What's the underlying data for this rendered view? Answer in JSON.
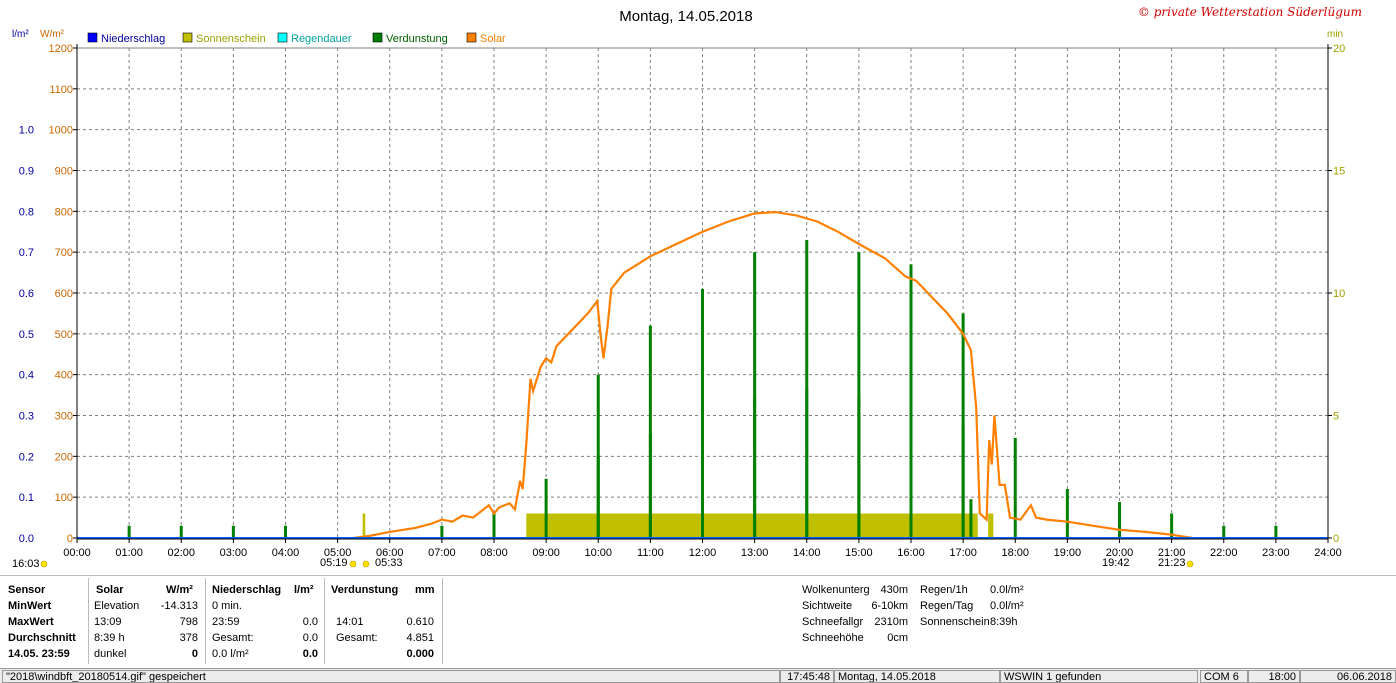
{
  "chart_data": {
    "type": "bar",
    "title": "Montag, 14.05.2018",
    "copyright": "© private Wetterstation Süderlügum",
    "left_units": [
      "l/m²",
      "W/m²"
    ],
    "right_unit": "min",
    "legend": [
      {
        "label": "Niederschlag",
        "color": "#0000ff"
      },
      {
        "label": "Sonnenschein",
        "color": "#c0c000"
      },
      {
        "label": "Regendauer",
        "color": "#00ffff"
      },
      {
        "label": "Verdunstung",
        "color": "#008000"
      },
      {
        "label": "Solar",
        "color": "#ff8000"
      }
    ],
    "left_axis_rain": {
      "ticks": [
        "0.0",
        "0.1",
        "0.2",
        "0.3",
        "0.4",
        "0.5",
        "0.6",
        "0.7",
        "0.8",
        "0.9",
        "1.0"
      ],
      "ylim": [
        0,
        1.2
      ],
      "color": "#0000a0"
    },
    "left_axis_solar": {
      "ticks": [
        "0",
        "100",
        "200",
        "300",
        "400",
        "500",
        "600",
        "700",
        "800",
        "900",
        "1000",
        "1100",
        "1200"
      ],
      "ylim": [
        0,
        1200
      ],
      "color": "#cc6600"
    },
    "right_axis": {
      "ticks": [
        "0",
        "5",
        "10",
        "15",
        "20"
      ],
      "ylim": [
        0,
        20
      ],
      "color": "#a0a000"
    },
    "x_ticks": [
      "00:00",
      "01:00",
      "02:00",
      "03:00",
      "04:00",
      "05:00",
      "06:00",
      "07:00",
      "08:00",
      "09:00",
      "10:00",
      "11:00",
      "12:00",
      "13:00",
      "14:00",
      "15:00",
      "16:00",
      "17:00",
      "18:00",
      "19:00",
      "20:00",
      "21:00",
      "22:00",
      "23:00",
      "24:00"
    ],
    "x_range_hours": [
      0,
      24
    ],
    "day_markers": [
      {
        "label": "16:03",
        "hour": -1.2
      },
      {
        "label": "05:19",
        "hour": 5.32
      },
      {
        "label": "05:33",
        "hour": 5.55
      },
      {
        "label": "19:42",
        "hour": 19.7
      },
      {
        "label": "21:23",
        "hour": 21.38
      }
    ],
    "sunshine_blocks": [
      {
        "start": 5.48,
        "end": 5.53,
        "value": 1.0
      },
      {
        "start": 8.62,
        "end": 17.28,
        "value": 1.0
      },
      {
        "start": 17.48,
        "end": 17.58,
        "value": 1.0
      }
    ],
    "evaporation_hours": [
      1,
      2,
      3,
      4,
      5,
      6,
      7,
      8,
      9,
      10,
      11,
      12,
      13,
      14,
      15,
      16,
      17,
      18,
      19,
      20,
      21,
      22,
      23
    ],
    "evaporation_spikes_solar_units": [
      [
        1.0,
        30
      ],
      [
        2.0,
        30
      ],
      [
        3.0,
        30
      ],
      [
        4.0,
        30
      ],
      [
        7.0,
        30
      ],
      [
        8.0,
        60
      ],
      [
        9.0,
        145
      ],
      [
        10.0,
        400
      ],
      [
        10.0,
        200
      ],
      [
        11.0,
        520
      ],
      [
        11.0,
        255
      ],
      [
        12.0,
        610
      ],
      [
        12.0,
        305
      ],
      [
        13.0,
        700
      ],
      [
        13.0,
        350
      ],
      [
        14.0,
        730
      ],
      [
        14.0,
        365
      ],
      [
        15.0,
        700
      ],
      [
        15.0,
        350
      ],
      [
        16.0,
        670
      ],
      [
        16.0,
        335
      ],
      [
        17.0,
        550
      ],
      [
        17.0,
        275
      ],
      [
        17.15,
        95
      ],
      [
        18.0,
        245
      ],
      [
        19.0,
        120
      ],
      [
        20.0,
        88
      ],
      [
        21.0,
        60
      ],
      [
        22.0,
        30
      ],
      [
        23.0,
        30
      ]
    ],
    "solar_series": [
      [
        5.3,
        0
      ],
      [
        5.6,
        5
      ],
      [
        6.0,
        15
      ],
      [
        6.5,
        25
      ],
      [
        6.8,
        35
      ],
      [
        7.0,
        45
      ],
      [
        7.2,
        40
      ],
      [
        7.4,
        55
      ],
      [
        7.6,
        50
      ],
      [
        7.8,
        70
      ],
      [
        7.9,
        80
      ],
      [
        8.0,
        60
      ],
      [
        8.1,
        75
      ],
      [
        8.3,
        85
      ],
      [
        8.4,
        70
      ],
      [
        8.5,
        140
      ],
      [
        8.55,
        120
      ],
      [
        8.62,
        230
      ],
      [
        8.7,
        390
      ],
      [
        8.75,
        360
      ],
      [
        8.9,
        420
      ],
      [
        9.0,
        440
      ],
      [
        9.1,
        430
      ],
      [
        9.2,
        470
      ],
      [
        9.5,
        510
      ],
      [
        9.8,
        550
      ],
      [
        9.98,
        580
      ],
      [
        10.05,
        490
      ],
      [
        10.1,
        440
      ],
      [
        10.18,
        520
      ],
      [
        10.25,
        610
      ],
      [
        10.5,
        650
      ],
      [
        11.0,
        690
      ],
      [
        11.5,
        720
      ],
      [
        12.0,
        750
      ],
      [
        12.5,
        775
      ],
      [
        13.0,
        795
      ],
      [
        13.4,
        798
      ],
      [
        13.8,
        790
      ],
      [
        14.2,
        775
      ],
      [
        14.6,
        750
      ],
      [
        15.0,
        720
      ],
      [
        15.5,
        685
      ],
      [
        15.9,
        640
      ],
      [
        16.1,
        630
      ],
      [
        16.4,
        590
      ],
      [
        16.7,
        550
      ],
      [
        17.0,
        500
      ],
      [
        17.15,
        460
      ],
      [
        17.25,
        320
      ],
      [
        17.32,
        60
      ],
      [
        17.45,
        45
      ],
      [
        17.5,
        240
      ],
      [
        17.55,
        180
      ],
      [
        17.6,
        300
      ],
      [
        17.7,
        130
      ],
      [
        17.8,
        130
      ],
      [
        17.9,
        50
      ],
      [
        18.1,
        45
      ],
      [
        18.3,
        80
      ],
      [
        18.4,
        50
      ],
      [
        18.6,
        45
      ],
      [
        19.0,
        40
      ],
      [
        19.5,
        30
      ],
      [
        20.0,
        20
      ],
      [
        20.5,
        15
      ],
      [
        21.0,
        8
      ],
      [
        21.4,
        0
      ]
    ],
    "grid": true,
    "legend_position": "top-left"
  },
  "panel": {
    "header": {
      "sensor": "Sensor",
      "solar": "Solar",
      "solar_unit": "W/m²",
      "rain": "Niederschlag",
      "rain_unit": "l/m²",
      "evap": "Verdunstung",
      "evap_unit": "mm"
    },
    "rows": [
      {
        "label": "MinWert",
        "c1": "Elevation",
        "c2": "-14.313",
        "c3": "0 min.",
        "c4": "",
        "c5": "",
        "c6": ""
      },
      {
        "label": "MaxWert",
        "c1": "13:09",
        "c2": "798",
        "c3": "23:59",
        "c4": "0.0",
        "c5": "14:01",
        "c6": "0.610"
      },
      {
        "label": "Durchschnitt",
        "c1": "8:39 h",
        "c2": "378",
        "c3": "Gesamt:",
        "c4": "0.0",
        "c5": "Gesamt:",
        "c6": "4.851"
      },
      {
        "label": "14.05. 23:59",
        "c1": "dunkel",
        "c2": "0",
        "c3": "0.0 l/m²",
        "c4": "0.0",
        "c5": "",
        "c6": "0.000"
      }
    ],
    "weather": [
      {
        "k": "Wolkenunterg",
        "v": "430m"
      },
      {
        "k": "Sichtweite",
        "v": "6-10km"
      },
      {
        "k": "Schneefallgr",
        "v": "2310m"
      },
      {
        "k": "Schneehöhe",
        "v": "0cm"
      }
    ],
    "rain": [
      {
        "k": "Regen/1h",
        "v": "0.0l/m²"
      },
      {
        "k": "Regen/Tag",
        "v": "0.0l/m²"
      },
      {
        "k": "Sonnenschein",
        "v": "8:39h"
      }
    ]
  },
  "status": {
    "file": "\"2018\\windbft_20180514.gif\" gespeichert",
    "time": "17:45:48",
    "date": "Montag, 14.05.2018",
    "ws": "WSWIN 1 gefunden",
    "com": "COM 6",
    "t2": "18:00",
    "d2": "06.06.2018"
  }
}
